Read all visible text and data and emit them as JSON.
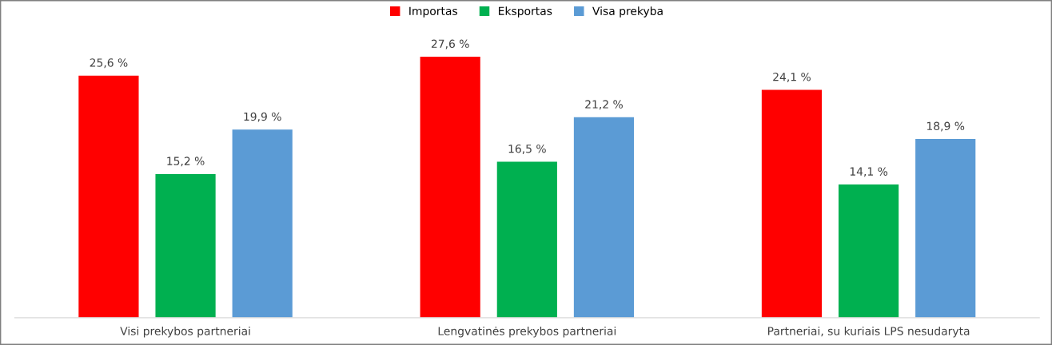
{
  "chart_data": {
    "type": "bar",
    "categories": [
      "Visi prekybos partneriai",
      "Lengvatinės prekybos partneriai",
      "Partneriai, su kuriais LPS nesudaryta"
    ],
    "series": [
      {
        "name": "Importas",
        "color": "#ff0000",
        "values": [
          25.6,
          27.6,
          24.1
        ],
        "value_labels": [
          "25,6 %",
          "27,6 %",
          "24,1 %"
        ]
      },
      {
        "name": "Eksportas",
        "color": "#00b050",
        "values": [
          15.2,
          16.5,
          14.1
        ],
        "value_labels": [
          "15,2 %",
          "16,5 %",
          "14,1 %"
        ]
      },
      {
        "name": "Visa prekyba",
        "color": "#5b9bd5",
        "values": [
          19.9,
          21.2,
          18.9
        ],
        "value_labels": [
          "19,9 %",
          "21,2 %",
          "18,9 %"
        ]
      }
    ],
    "legend": "top",
    "grid": false,
    "tick_labels": "x"
  }
}
